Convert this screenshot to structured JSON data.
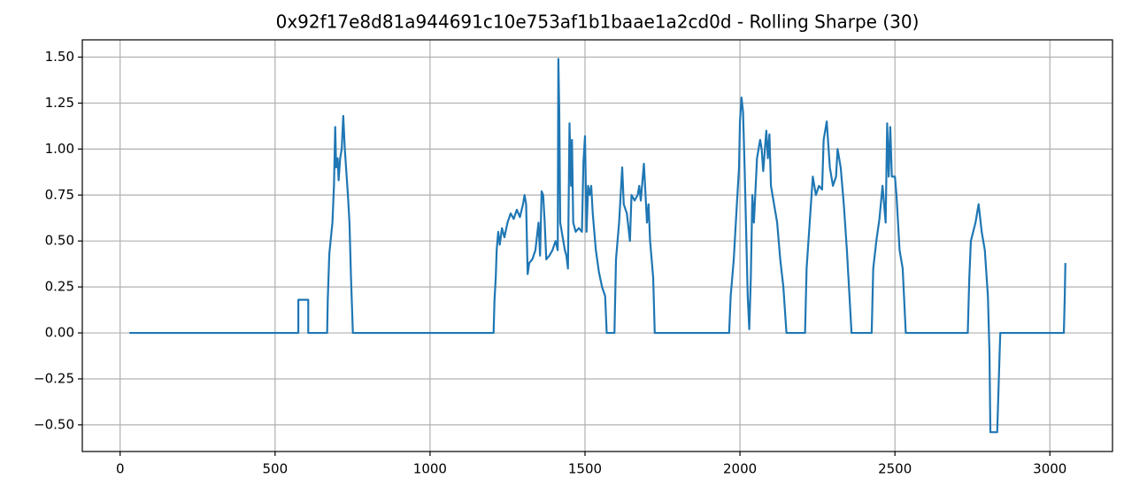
{
  "chart_data": {
    "type": "line",
    "title": "0x92f17e8d81a944691c10e753af1b1baae1a2cd0d - Rolling Sharpe (30)",
    "x": [
      30,
      575,
      575,
      607,
      607,
      668,
      670,
      675,
      685,
      690,
      694,
      697,
      702,
      705,
      710,
      715,
      720,
      725,
      735,
      740,
      745,
      751,
      1205,
      1208,
      1212,
      1215,
      1220,
      1225,
      1232,
      1240,
      1250,
      1260,
      1270,
      1280,
      1290,
      1300,
      1305,
      1310,
      1315,
      1320,
      1330,
      1340,
      1350,
      1355,
      1360,
      1365,
      1370,
      1375,
      1385,
      1395,
      1405,
      1412,
      1414,
      1417,
      1420,
      1425,
      1430,
      1435,
      1440,
      1445,
      1450,
      1455,
      1458,
      1462,
      1470,
      1480,
      1490,
      1495,
      1500,
      1505,
      1510,
      1515,
      1520,
      1525,
      1535,
      1545,
      1555,
      1565,
      1570,
      1595,
      1600,
      1610,
      1620,
      1625,
      1635,
      1645,
      1650,
      1660,
      1670,
      1675,
      1680,
      1690,
      1700,
      1705,
      1710,
      1720,
      1725,
      1965,
      1970,
      1980,
      1990,
      1997,
      2000,
      2005,
      2010,
      2015,
      2020,
      2025,
      2030,
      2035,
      2040,
      2045,
      2055,
      2065,
      2070,
      2075,
      2085,
      2090,
      2095,
      2100,
      2110,
      2120,
      2130,
      2140,
      2150,
      2210,
      2215,
      2225,
      2235,
      2245,
      2255,
      2265,
      2270,
      2280,
      2290,
      2300,
      2310,
      2315,
      2325,
      2335,
      2345,
      2350,
      2360,
      2425,
      2430,
      2440,
      2450,
      2460,
      2470,
      2475,
      2480,
      2485,
      2490,
      2500,
      2505,
      2510,
      2515,
      2525,
      2535,
      2735,
      2740,
      2745,
      2760,
      2770,
      2780,
      2790,
      2800,
      2805,
      2808,
      2830,
      2838,
      2840,
      3045,
      3048,
      3050
    ],
    "values": [
      0,
      0,
      0.18,
      0.18,
      0,
      0,
      0.18,
      0.43,
      0.6,
      0.8,
      1.12,
      0.9,
      0.95,
      0.83,
      0.95,
      1.0,
      1.18,
      1.0,
      0.75,
      0.6,
      0.3,
      0,
      0,
      0.18,
      0.3,
      0.45,
      0.55,
      0.48,
      0.57,
      0.52,
      0.6,
      0.65,
      0.62,
      0.67,
      0.63,
      0.7,
      0.75,
      0.7,
      0.32,
      0.38,
      0.4,
      0.45,
      0.6,
      0.42,
      0.77,
      0.75,
      0.6,
      0.4,
      0.42,
      0.45,
      0.5,
      0.45,
      1.49,
      1.2,
      0.6,
      0.55,
      0.5,
      0.45,
      0.42,
      0.35,
      1.14,
      0.8,
      1.05,
      0.6,
      0.55,
      0.57,
      0.55,
      0.93,
      1.07,
      0.55,
      0.8,
      0.75,
      0.8,
      0.65,
      0.45,
      0.33,
      0.25,
      0.2,
      0,
      0,
      0.4,
      0.6,
      0.9,
      0.7,
      0.65,
      0.5,
      0.75,
      0.72,
      0.75,
      0.8,
      0.72,
      0.92,
      0.6,
      0.7,
      0.5,
      0.3,
      0,
      0,
      0.2,
      0.4,
      0.7,
      0.9,
      1.15,
      1.28,
      1.2,
      0.9,
      0.55,
      0.2,
      0.02,
      0.3,
      0.75,
      0.6,
      0.95,
      1.05,
      1.0,
      0.88,
      1.1,
      0.95,
      1.08,
      0.8,
      0.7,
      0.6,
      0.4,
      0.25,
      0,
      0,
      0.35,
      0.6,
      0.85,
      0.75,
      0.8,
      0.78,
      1.05,
      1.15,
      0.9,
      0.8,
      0.85,
      1.0,
      0.9,
      0.7,
      0.45,
      0.3,
      0,
      0,
      0.35,
      0.5,
      0.62,
      0.8,
      0.6,
      1.14,
      0.85,
      1.12,
      0.85,
      0.85,
      0.75,
      0.6,
      0.45,
      0.35,
      0,
      0,
      0.3,
      0.5,
      0.6,
      0.7,
      0.55,
      0.45,
      0.2,
      -0.1,
      -0.54,
      -0.54,
      -0.1,
      0,
      0,
      0.2,
      0.38
    ],
    "color": "#1f77b4",
    "xlim": [
      -122,
      3202
    ],
    "xticks": [
      0,
      500,
      1000,
      1500,
      2000,
      2500,
      3000
    ],
    "ylim": [
      -0.645,
      1.594
    ],
    "yticks": [
      {
        "value": -0.5,
        "label": "−0.50"
      },
      {
        "value": -0.25,
        "label": "−0.25"
      },
      {
        "value": 0,
        "label": "0.00"
      },
      {
        "value": 0.25,
        "label": "0.25"
      },
      {
        "value": 0.5,
        "label": "0.50"
      },
      {
        "value": 0.75,
        "label": "0.75"
      },
      {
        "value": 1.0,
        "label": "1.00"
      },
      {
        "value": 1.25,
        "label": "1.25"
      },
      {
        "value": 1.5,
        "label": "1.50"
      }
    ],
    "grid": true
  }
}
